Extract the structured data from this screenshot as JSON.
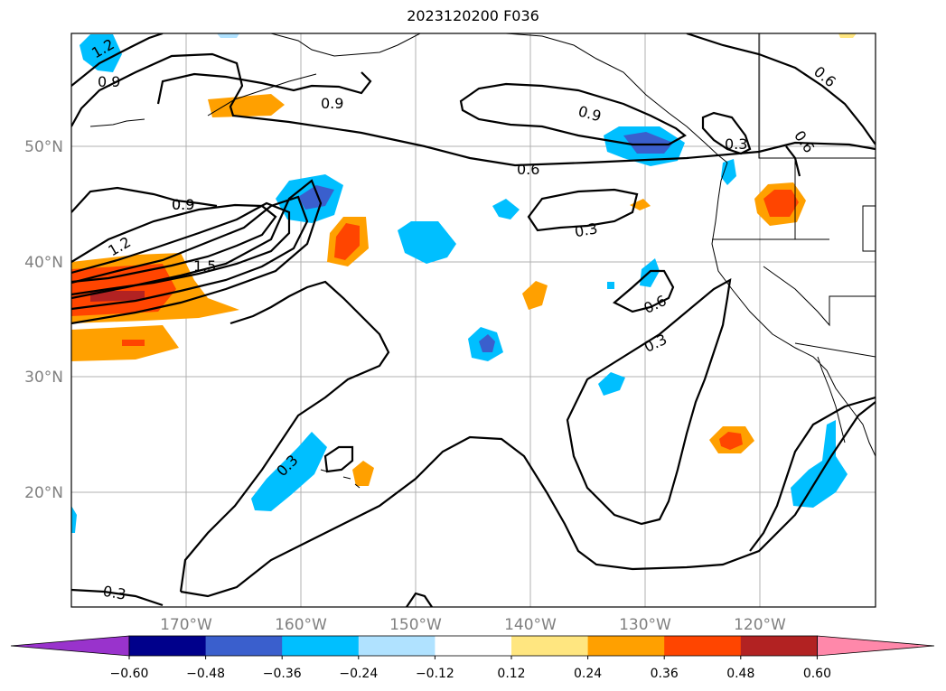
{
  "title": "2023120200 F036",
  "map": {
    "lon_ticks": [
      "170°W",
      "160°W",
      "150°W",
      "140°W",
      "130°W",
      "120°W"
    ],
    "lat_ticks": [
      "50°N",
      "40°N",
      "30°N",
      "20°N"
    ]
  },
  "colorbar": {
    "labels": [
      "−0.60",
      "−0.48",
      "−0.36",
      "−0.24",
      "−0.12",
      "0.12",
      "0.24",
      "0.36",
      "0.48",
      "0.60"
    ],
    "colors": [
      "#9933cc",
      "#00008b",
      "#3a5fcd",
      "#00bfff",
      "#b0e2ff",
      "#ffffff",
      "#ffe680",
      "#ffa000",
      "#ff4500",
      "#b22222",
      "#ff88aa"
    ]
  },
  "contours": {
    "labels": [
      "1.2",
      "0.9",
      "0.9",
      "0.9",
      "0.9",
      "0.6",
      "0.6",
      "0.6",
      "0.3",
      "0.3",
      "0.3",
      "0.6",
      "1.2",
      "0.9",
      "1.5",
      "0.3",
      "0.3"
    ]
  }
}
